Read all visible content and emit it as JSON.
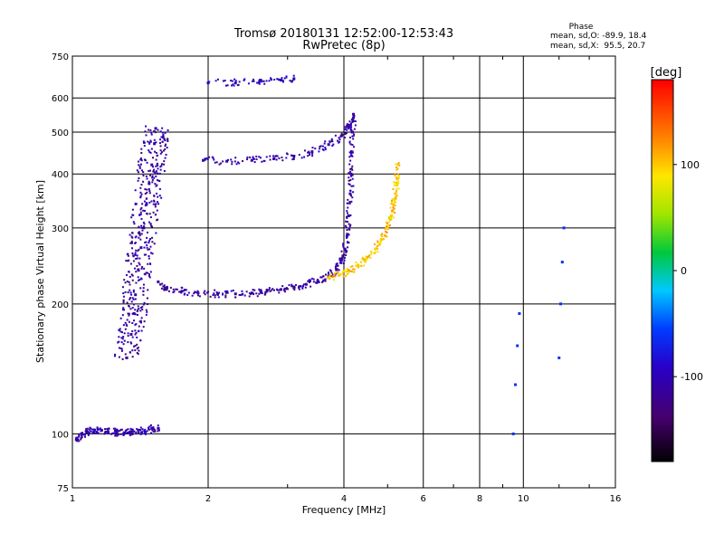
{
  "chart_data": {
    "type": "scatter",
    "title": "Tromsø 20180131 12:52:00-12:53:43",
    "subtitle": "RwPretec (8p)",
    "xlabel": "Frequency [MHz]",
    "ylabel": "Stationary phase Virtual Height [km]",
    "x_scale": "log",
    "y_scale": "log",
    "xlim": [
      1,
      16
    ],
    "ylim": [
      75,
      750
    ],
    "x_ticks": [
      "1",
      "2",
      "4",
      "6",
      "8",
      "10",
      "16"
    ],
    "x_gridlines": [
      2,
      4,
      6,
      8,
      10
    ],
    "y_ticks": [
      "75",
      "100",
      "200",
      "300",
      "400",
      "500",
      "600",
      "750"
    ],
    "y_gridlines": [
      100,
      200,
      300,
      400,
      500,
      600
    ],
    "grid": true,
    "stats": {
      "heading": "Phase",
      "o_line": "mean, sd,O: -89.9, 18.4",
      "x_line": "mean, sd,X:  95.5, 20.7"
    },
    "colorbar": {
      "label": "[deg]",
      "min": -180,
      "max": 180,
      "ticks": [
        "100",
        "0",
        "-100"
      ]
    },
    "traces": [
      {
        "name": "",
        "points": [
          [
            1.02,
            97
          ],
          [
            1.05,
            100
          ],
          [
            1.08,
            101
          ],
          [
            1.12,
            102
          ],
          [
            1.16,
            102
          ],
          [
            1.2,
            101
          ],
          [
            1.25,
            101
          ],
          [
            1.3,
            100
          ],
          [
            1.35,
            101
          ],
          [
            1.4,
            102
          ],
          [
            1.45,
            101
          ],
          [
            1.5,
            103
          ],
          [
            1.55,
            103
          ]
        ],
        "phase": -105
      },
      {
        "name": "",
        "points": [
          [
            1.32,
            150
          ],
          [
            1.35,
            170
          ],
          [
            1.37,
            190
          ],
          [
            1.38,
            210
          ],
          [
            1.4,
            240
          ],
          [
            1.42,
            270
          ],
          [
            1.44,
            300
          ],
          [
            1.46,
            340
          ],
          [
            1.48,
            380
          ],
          [
            1.5,
            420
          ],
          [
            1.52,
            470
          ],
          [
            1.53,
            510
          ]
        ],
        "phase": -110
      },
      {
        "name": "",
        "points": [
          [
            1.55,
            225
          ],
          [
            1.62,
            218
          ],
          [
            1.75,
            214
          ],
          [
            1.9,
            212
          ],
          [
            2.1,
            211
          ],
          [
            2.3,
            211
          ],
          [
            2.5,
            212
          ],
          [
            2.7,
            214
          ],
          [
            2.9,
            216
          ],
          [
            3.1,
            219
          ],
          [
            3.3,
            222
          ],
          [
            3.5,
            226
          ],
          [
            3.7,
            232
          ],
          [
            3.85,
            240
          ],
          [
            3.95,
            252
          ],
          [
            4.02,
            268
          ],
          [
            4.07,
            290
          ],
          [
            4.1,
            320
          ],
          [
            4.13,
            360
          ],
          [
            4.15,
            400
          ],
          [
            4.17,
            450
          ],
          [
            4.18,
            500
          ],
          [
            4.2,
            550
          ]
        ],
        "phase": -110
      },
      {
        "name": "",
        "points": [
          [
            1.95,
            430
          ],
          [
            2.2,
            428
          ],
          [
            2.5,
            430
          ],
          [
            2.8,
            434
          ],
          [
            3.1,
            440
          ],
          [
            3.4,
            450
          ],
          [
            3.7,
            468
          ],
          [
            3.95,
            490
          ],
          [
            4.1,
            515
          ],
          [
            4.2,
            540
          ]
        ],
        "phase": -105
      },
      {
        "name": "",
        "points": [
          [
            2.0,
            650
          ],
          [
            2.3,
            650
          ],
          [
            2.6,
            655
          ],
          [
            2.9,
            660
          ],
          [
            3.1,
            665
          ]
        ],
        "phase": -95
      },
      {
        "name": "",
        "points": [
          [
            3.7,
            230
          ],
          [
            3.9,
            233
          ],
          [
            4.1,
            238
          ],
          [
            4.3,
            246
          ],
          [
            4.5,
            256
          ],
          [
            4.7,
            268
          ],
          [
            4.85,
            282
          ],
          [
            5.0,
            300
          ],
          [
            5.1,
            320
          ],
          [
            5.15,
            340
          ],
          [
            5.2,
            360
          ],
          [
            5.25,
            390
          ],
          [
            5.28,
            420
          ]
        ],
        "phase": 100
      },
      {
        "name": "",
        "points": [
          [
            9.5,
            100
          ],
          [
            9.6,
            130
          ],
          [
            9.7,
            160
          ],
          [
            9.8,
            190
          ],
          [
            12.0,
            150
          ],
          [
            12.1,
            200
          ],
          [
            12.2,
            250
          ],
          [
            12.3,
            300
          ]
        ],
        "phase": -60
      }
    ]
  }
}
